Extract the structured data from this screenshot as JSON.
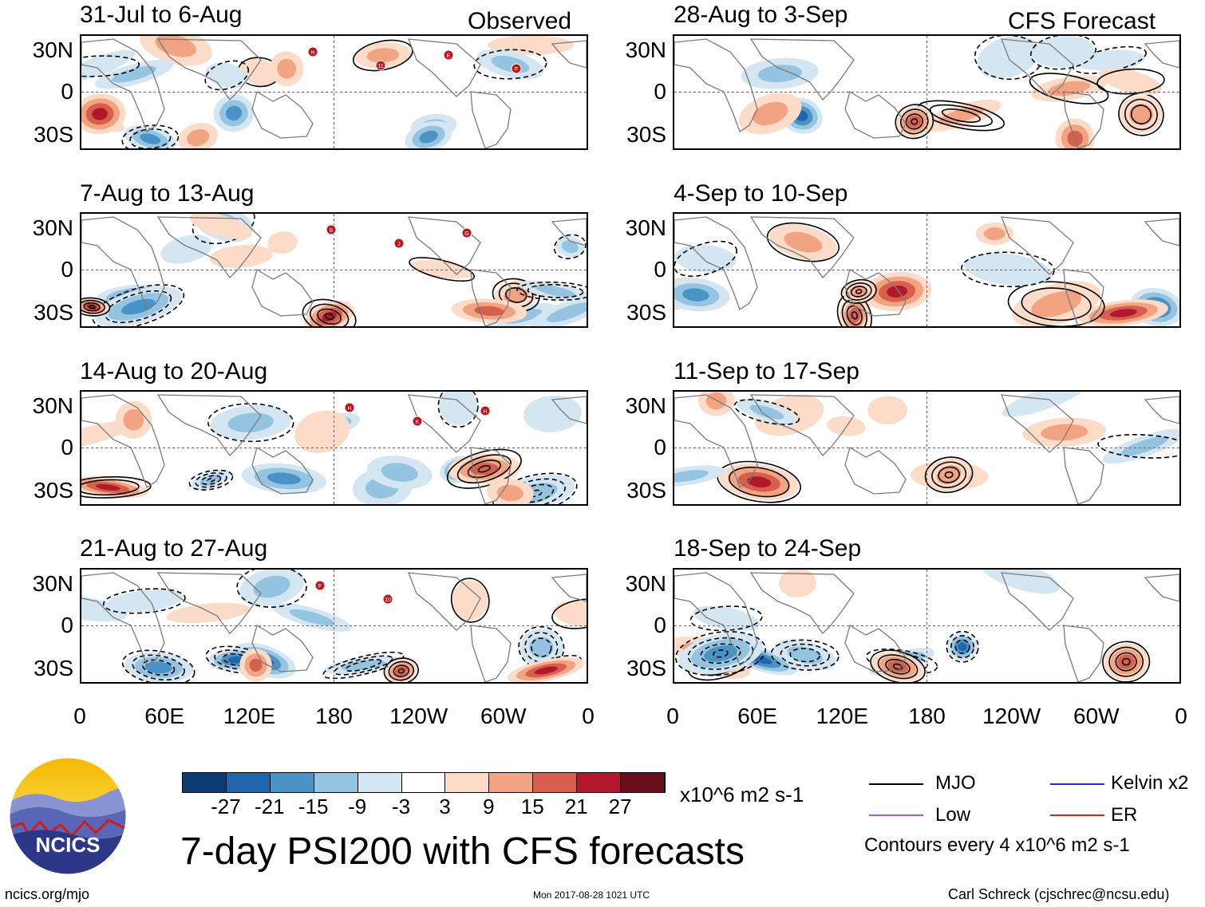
{
  "observed_label": "Observed",
  "forecast_label": "CFS Forecast",
  "chart_data": {
    "type": "heatmap",
    "title": "7-day PSI200 with CFS forecasts",
    "units": "x10^6 m2 s-1",
    "x_ticks": [
      "0",
      "60E",
      "120E",
      "180",
      "120W",
      "60W",
      "0"
    ],
    "y_ticks": [
      "30N",
      "0",
      "30S"
    ],
    "lat_range": [
      -40,
      40
    ],
    "lon_range": [
      0,
      360
    ],
    "panels": [
      {
        "id": "p1",
        "label": "31-Jul to 6-Aug",
        "kind": "observed"
      },
      {
        "id": "p2",
        "label": "7-Aug to 13-Aug",
        "kind": "observed"
      },
      {
        "id": "p3",
        "label": "14-Aug to 20-Aug",
        "kind": "observed"
      },
      {
        "id": "p4",
        "label": "21-Aug to 27-Aug",
        "kind": "observed"
      },
      {
        "id": "p5",
        "label": "28-Aug to 3-Sep",
        "kind": "forecast"
      },
      {
        "id": "p6",
        "label": "4-Sep to 10-Sep",
        "kind": "forecast"
      },
      {
        "id": "p7",
        "label": "11-Sep to 17-Sep",
        "kind": "forecast"
      },
      {
        "id": "p8",
        "label": "18-Sep to 24-Sep",
        "kind": "forecast"
      }
    ],
    "colorbar": {
      "colors": [
        "#0b3c73",
        "#1f66ad",
        "#4a93c7",
        "#94c4e0",
        "#d3e6f2",
        "#ffffff",
        "#fcdcc8",
        "#f2a482",
        "#d6604d",
        "#b2182b",
        "#6a0e1f"
      ],
      "labels": [
        "-27",
        "-21",
        "-15",
        "-9",
        "-3",
        "3",
        "9",
        "15",
        "21",
        "27"
      ]
    },
    "legend": [
      {
        "name": "MJO",
        "color": "#000000"
      },
      {
        "name": "Kelvin x2",
        "color": "#1a2bd6"
      },
      {
        "name": "Low",
        "color": "#a060e0"
      },
      {
        "name": "ER",
        "color": "#e02020"
      }
    ],
    "contour_note": "Contours every 4 x10^6 m2 s-1"
  },
  "footer": {
    "logo_text": "NCICS",
    "url": "ncics.org/mjo",
    "timestamp": "Mon 2017-08-28 1021 UTC",
    "credit": "Carl Schreck (cjschrec@ncsu.edu)"
  },
  "storm_markers": {
    "p1": [
      "N",
      "11",
      "E",
      "F"
    ],
    "p2": [
      "B",
      "J",
      "G"
    ],
    "p3": [
      "H",
      "K",
      "H"
    ],
    "p4": [
      "F",
      "10"
    ]
  }
}
